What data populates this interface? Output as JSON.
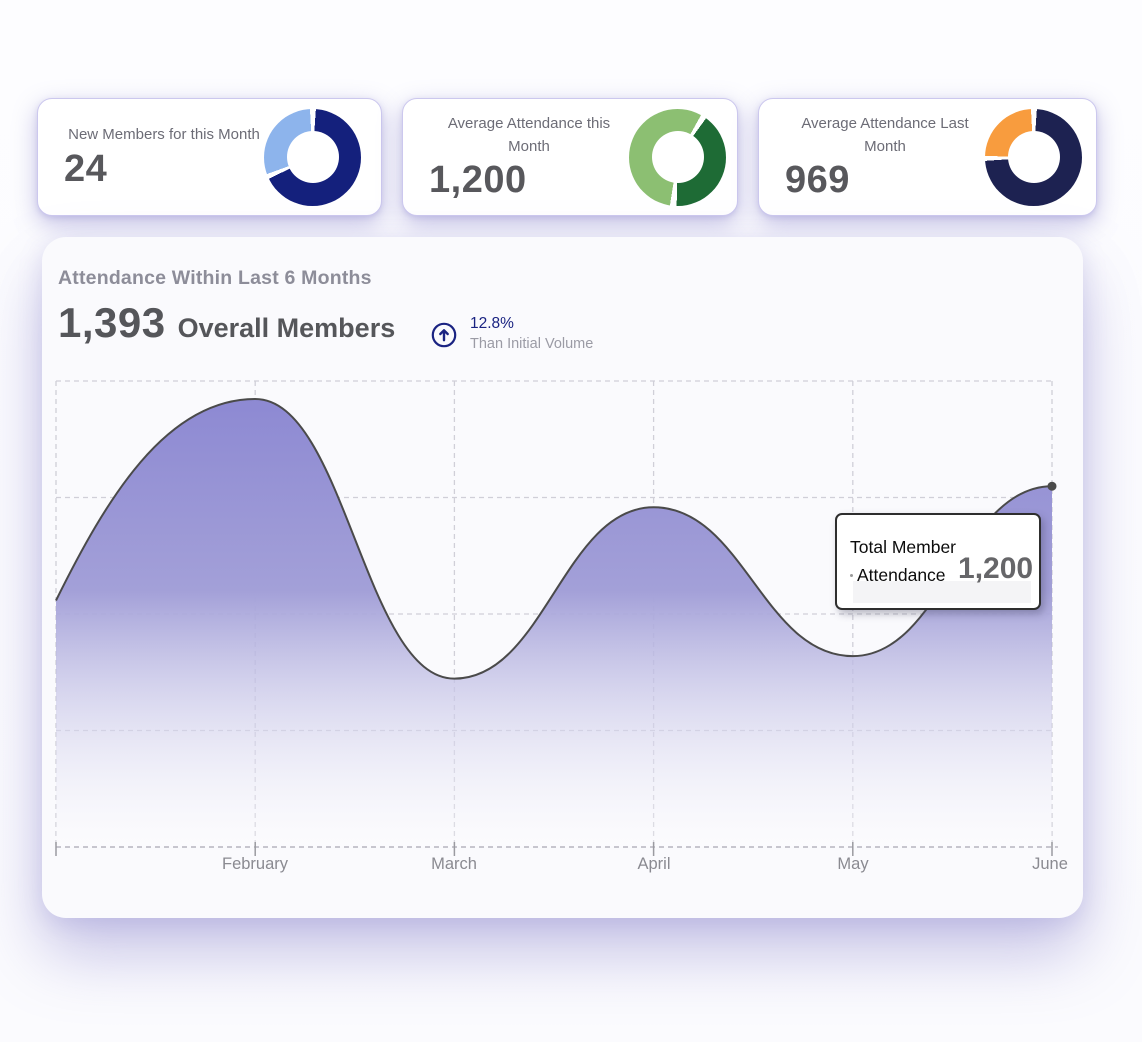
{
  "stat_cards": [
    {
      "label": "New Members for this Month",
      "value": "24"
    },
    {
      "label": "Average Attendance this Month",
      "value": "1,200"
    },
    {
      "label": "Average Attendance Last Month",
      "value": "969"
    }
  ],
  "chart_card": {
    "title": "Attendance Within Last 6 Months",
    "overall_value": "1,393",
    "overall_label": "Overall Members",
    "growth_percent": "12.8%",
    "growth_caption": "Than Initial Volume",
    "x_labels": [
      "February",
      "March",
      "April",
      "May",
      "June"
    ],
    "tooltip": {
      "line1": "Total Member",
      "line2": "Attendance",
      "value": "1,200"
    }
  },
  "chart_data": [
    {
      "type": "area",
      "title": "Attendance Within Last 6 Months",
      "series": [
        {
          "name": "Total Member Attendance",
          "values": [
            820,
            1490,
            560,
            1130,
            635,
            1200
          ]
        }
      ],
      "x_tick_labels": [
        "February",
        "March",
        "April",
        "May",
        "June"
      ],
      "xlabel": "",
      "ylabel": "",
      "ylim": [
        0,
        1550
      ],
      "grid": "dashed",
      "highlighted_point": {
        "index": 5,
        "value": 1200,
        "tooltip": "Total Member Attendance 1,200"
      }
    },
    {
      "type": "donut",
      "card": "New Members for this Month",
      "segments": [
        {
          "name": "primary",
          "color": "#14207c",
          "start_deg": 4,
          "end_deg": 244,
          "percent": 67
        },
        {
          "name": "secondary",
          "color": "#8db4ec",
          "start_deg": 250,
          "end_deg": 357,
          "percent": 30
        }
      ]
    },
    {
      "type": "donut",
      "card": "Average Attendance this Month",
      "segments": [
        {
          "name": "primary",
          "color": "#1e6b35",
          "start_deg": 36,
          "end_deg": 181,
          "percent": 40
        },
        {
          "name": "secondary",
          "color": "#8cbf72",
          "start_deg": 189,
          "end_deg": 389,
          "percent": 56
        }
      ]
    },
    {
      "type": "donut",
      "card": "Average Attendance Last Month",
      "segments": [
        {
          "name": "primary",
          "color": "#1d2251",
          "start_deg": 4,
          "end_deg": 266,
          "percent": 73
        },
        {
          "name": "secondary",
          "color": "#f89c3e",
          "start_deg": 272,
          "end_deg": 357,
          "percent": 24
        }
      ]
    }
  ],
  "colors": {
    "navy": "#14207c",
    "light_blue": "#8db4ec",
    "dark_green": "#1e6b35",
    "light_green": "#8cbf72",
    "ink_navy": "#1d2251",
    "orange": "#f89c3e",
    "growth_accent": "#1a2382",
    "area_fill_top": "#8b87d2",
    "area_fill_mid": "#a3a0d8",
    "area_stroke": "#4a4a4a",
    "grid_line": "#d0cfd8",
    "tick": "#9a9aa0",
    "value_gray": "#58585c"
  }
}
